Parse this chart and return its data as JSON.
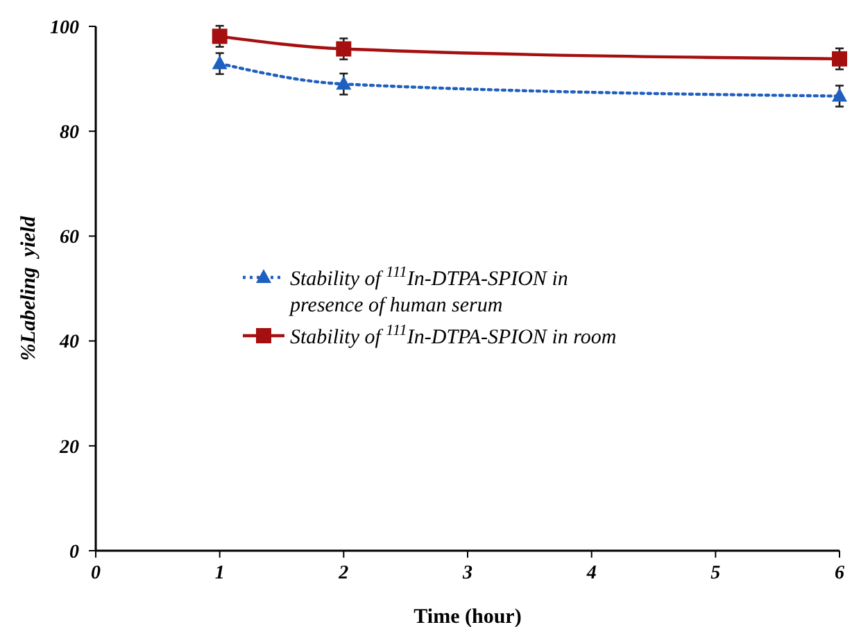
{
  "chart_data": {
    "type": "line",
    "xlabel": "Time (hour)",
    "ylabel": "%Labeling  yield",
    "x": [
      1,
      2,
      6
    ],
    "xlim": [
      0,
      6
    ],
    "xticks": [
      0,
      1,
      2,
      3,
      4,
      5,
      6
    ],
    "ylim": [
      0,
      100
    ],
    "yticks": [
      0,
      20,
      40,
      60,
      80,
      100
    ],
    "series": [
      {
        "name": "Stability of $^{111}$In-DTPA-SPION in presence of human serum",
        "color": "#1f5fbf",
        "values": [
          92.9,
          89.0,
          86.7
        ],
        "errors": [
          2,
          2,
          2
        ],
        "marker": "triangle",
        "line_style": "dotted"
      },
      {
        "name": "Stability of $^{111}$In-DTPA-SPION in room",
        "color": "#a50f0f",
        "values": [
          98.1,
          95.7,
          93.8
        ],
        "errors": [
          2,
          2,
          2
        ],
        "marker": "square",
        "line_style": "solid"
      }
    ],
    "legend": "left",
    "grid": false
  }
}
